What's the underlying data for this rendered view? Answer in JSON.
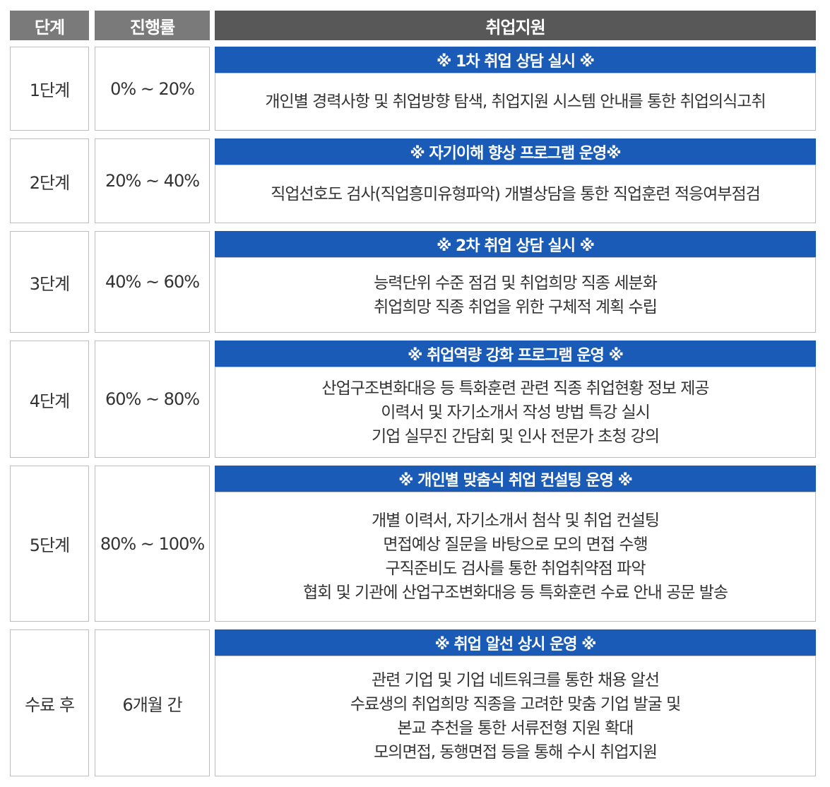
{
  "header": {
    "stage": "단계",
    "progress": "진행률",
    "support": "취업지원"
  },
  "rows": [
    {
      "stage": "1단계",
      "progress": "0% ~ 20%",
      "title": "※ 1차 취업 상담 실시 ※",
      "lines": [
        "개인별 경력사항 및 취업방향 탐색, 취업지원 시스템 안내를 통한 취업의식고취"
      ]
    },
    {
      "stage": "2단계",
      "progress": "20% ~ 40%",
      "title": "※ 자기이해 향상 프로그램 운영※",
      "lines": [
        "직업선호도 검사(직업흥미유형파악) 개별상담을 통한 직업훈련 적응여부점검"
      ]
    },
    {
      "stage": "3단계",
      "progress": "40% ~ 60%",
      "title": "※ 2차 취업 상담 실시 ※",
      "lines": [
        "능력단위 수준 점검 및 취업희망 직종 세분화",
        "취업희망 직종 취업을 위한 구체적 계획 수립"
      ]
    },
    {
      "stage": "4단계",
      "progress": "60% ~ 80%",
      "title": "※ 취업역량 강화 프로그램 운영 ※",
      "lines": [
        "산업구조변화대응 등 특화훈련 관련 직종 취업현황 정보 제공",
        "이력서 및 자기소개서 작성 방법 특강 실시",
        "기업 실무진 간담회 및 인사 전문가 초청 강의"
      ]
    },
    {
      "stage": "5단계",
      "progress": "80% ~ 100%",
      "title": "※ 개인별 맞춤식 취업 컨설팅 운영 ※",
      "lines": [
        "개별 이력서, 자기소개서 첨삭 및 취업 컨설팅",
        "면접예상 질문을 바탕으로 모의 면접 수행",
        "구직준비도 검사를 통한 취업취약점 파악",
        "협회 및 기관에 산업구조변화대응 등 특화훈련 수료 안내 공문 발송"
      ]
    },
    {
      "stage": "수료 후",
      "progress": "6개월 간",
      "title": "※ 취업 알선 상시 운영 ※",
      "lines": [
        "관련 기업 및 기업 네트워크를 통한 채용 알선",
        "수료생의 취업희망 직종을 고려한 맞춤 기업 발굴 및",
        "본교 추천을 통한 서류전형 지원 확대",
        "모의면접, 동행면접 등을 통해 수시 취업지원"
      ]
    }
  ],
  "colors": {
    "header_gray": "#7a7a7a",
    "header_dark": "#585858",
    "title_blue": "#1a5bb8",
    "border": "#bdbdbd"
  }
}
